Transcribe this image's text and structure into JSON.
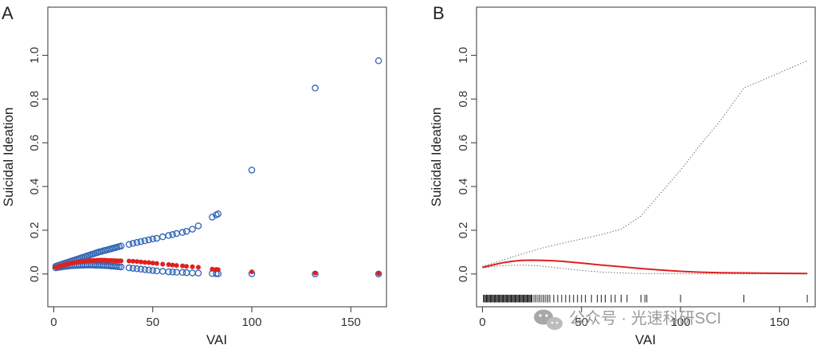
{
  "colors": {
    "observed": "#2e63b5",
    "fitted": "#e02020",
    "ci": "#555555",
    "axis": "#333333",
    "rug": "#000000"
  },
  "watermark": {
    "icon": "wechat-icon",
    "text": "公众号 · 光速科研SCI"
  },
  "chart_data": [
    {
      "panel_label": "A",
      "type": "scatter",
      "xlabel": "VAI",
      "ylabel": "Suicidal Ideation",
      "xlim": [
        -3,
        168
      ],
      "ylim": [
        -0.15,
        1.22
      ],
      "xticks": [
        0,
        50,
        100,
        150
      ],
      "yticks": [
        0.0,
        0.2,
        0.4,
        0.6,
        0.8,
        1.0
      ],
      "ytick_labels": [
        "0.0",
        "0.2",
        "0.4",
        "0.6",
        "0.8",
        "1.0"
      ],
      "grid": false,
      "legend": "none",
      "series": [
        {
          "role": "fitted",
          "marker": "filled-circle",
          "x": [
            1,
            2,
            3,
            4,
            5,
            6,
            7,
            8,
            9,
            10,
            11,
            12,
            13,
            14,
            15,
            16,
            17,
            18,
            19,
            20,
            21,
            22,
            23,
            24,
            25,
            26,
            27,
            28,
            29,
            30,
            31,
            32,
            33,
            34,
            38,
            40,
            42,
            44,
            46,
            48,
            50,
            52,
            55,
            58,
            60,
            62,
            65,
            67,
            70,
            73,
            80,
            82,
            83,
            100,
            132,
            164
          ],
          "y": [
            0.031,
            0.033,
            0.036,
            0.038,
            0.041,
            0.043,
            0.045,
            0.047,
            0.049,
            0.051,
            0.053,
            0.055,
            0.056,
            0.057,
            0.058,
            0.059,
            0.06,
            0.061,
            0.061,
            0.062,
            0.062,
            0.063,
            0.063,
            0.063,
            0.063,
            0.063,
            0.062,
            0.062,
            0.062,
            0.061,
            0.061,
            0.06,
            0.06,
            0.06,
            0.059,
            0.058,
            0.057,
            0.055,
            0.053,
            0.052,
            0.05,
            0.048,
            0.045,
            0.043,
            0.041,
            0.039,
            0.037,
            0.035,
            0.033,
            0.031,
            0.022,
            0.021,
            0.02,
            0.01,
            0.004,
            0.002
          ]
        },
        {
          "role": "upper",
          "marker": "open-circle",
          "x": [
            1,
            2,
            3,
            4,
            5,
            6,
            7,
            8,
            9,
            10,
            11,
            12,
            13,
            14,
            15,
            16,
            17,
            18,
            19,
            20,
            21,
            22,
            23,
            24,
            25,
            26,
            27,
            28,
            29,
            30,
            31,
            32,
            33,
            34,
            38,
            40,
            42,
            44,
            46,
            48,
            50,
            52,
            55,
            58,
            60,
            62,
            65,
            67,
            70,
            73,
            80,
            82,
            83,
            100,
            132,
            164
          ],
          "y": [
            0.035,
            0.038,
            0.041,
            0.044,
            0.047,
            0.05,
            0.053,
            0.056,
            0.059,
            0.062,
            0.065,
            0.068,
            0.071,
            0.074,
            0.077,
            0.08,
            0.083,
            0.086,
            0.089,
            0.092,
            0.095,
            0.098,
            0.101,
            0.103,
            0.106,
            0.108,
            0.11,
            0.113,
            0.115,
            0.118,
            0.12,
            0.123,
            0.125,
            0.128,
            0.135,
            0.14,
            0.144,
            0.148,
            0.152,
            0.156,
            0.16,
            0.163,
            0.17,
            0.176,
            0.18,
            0.185,
            0.19,
            0.195,
            0.205,
            0.22,
            0.26,
            0.27,
            0.275,
            0.475,
            0.85,
            0.975
          ]
        },
        {
          "role": "lower",
          "marker": "open-circle",
          "x": [
            1,
            2,
            3,
            4,
            5,
            6,
            7,
            8,
            9,
            10,
            11,
            12,
            13,
            14,
            15,
            16,
            17,
            18,
            19,
            20,
            21,
            22,
            23,
            24,
            25,
            26,
            27,
            28,
            29,
            30,
            31,
            32,
            33,
            34,
            38,
            40,
            42,
            44,
            46,
            48,
            50,
            52,
            55,
            58,
            60,
            62,
            65,
            67,
            70,
            73,
            80,
            82,
            83,
            100,
            132,
            164
          ],
          "y": [
            0.028,
            0.03,
            0.031,
            0.032,
            0.034,
            0.035,
            0.036,
            0.037,
            0.038,
            0.038,
            0.039,
            0.039,
            0.04,
            0.04,
            0.04,
            0.041,
            0.041,
            0.041,
            0.041,
            0.041,
            0.04,
            0.04,
            0.04,
            0.039,
            0.039,
            0.038,
            0.038,
            0.037,
            0.036,
            0.036,
            0.035,
            0.034,
            0.033,
            0.032,
            0.028,
            0.026,
            0.024,
            0.022,
            0.02,
            0.018,
            0.016,
            0.014,
            0.012,
            0.01,
            0.009,
            0.008,
            0.007,
            0.006,
            0.005,
            0.004,
            0.002,
            0.001,
            0.001,
            0.001,
            0.0,
            0.0
          ]
        }
      ]
    },
    {
      "panel_label": "B",
      "type": "line",
      "xlabel": "VAI",
      "ylabel": "Suicidal Ideation",
      "xlim": [
        -3,
        168
      ],
      "ylim": [
        -0.15,
        1.22
      ],
      "xticks": [
        0,
        50,
        100,
        150
      ],
      "yticks": [
        0.0,
        0.2,
        0.4,
        0.6,
        0.8,
        1.0
      ],
      "ytick_labels": [
        "0.0",
        "0.2",
        "0.4",
        "0.6",
        "0.8",
        "1.0"
      ],
      "grid": false,
      "legend": "none",
      "series": [
        {
          "role": "fitted",
          "style": "solid",
          "x": [
            0,
            5,
            10,
            15,
            20,
            25,
            30,
            35,
            40,
            50,
            60,
            70,
            80,
            90,
            100,
            110,
            120,
            130,
            140,
            150,
            164
          ],
          "y": [
            0.03,
            0.041,
            0.051,
            0.058,
            0.062,
            0.063,
            0.062,
            0.061,
            0.058,
            0.05,
            0.041,
            0.033,
            0.025,
            0.018,
            0.012,
            0.008,
            0.006,
            0.005,
            0.004,
            0.003,
            0.002
          ]
        },
        {
          "role": "upper",
          "style": "dotted",
          "x": [
            0,
            10,
            20,
            30,
            40,
            50,
            60,
            70,
            80,
            90,
            100,
            110,
            120,
            132,
            150,
            164
          ],
          "y": [
            0.035,
            0.062,
            0.092,
            0.118,
            0.14,
            0.16,
            0.18,
            0.205,
            0.265,
            0.37,
            0.475,
            0.59,
            0.7,
            0.85,
            0.92,
            0.975
          ]
        },
        {
          "role": "lower",
          "style": "dotted",
          "x": [
            0,
            10,
            20,
            30,
            40,
            50,
            60,
            70,
            80,
            100,
            120,
            140,
            164
          ],
          "y": [
            0.028,
            0.038,
            0.041,
            0.036,
            0.026,
            0.016,
            0.009,
            0.005,
            0.002,
            0.001,
            0.0,
            0.0,
            0.0
          ]
        }
      ],
      "rug": [
        0.5,
        1,
        1.5,
        2,
        2.5,
        3,
        3.5,
        4,
        4.5,
        5,
        5.5,
        6,
        6.5,
        7,
        7.5,
        8,
        8.5,
        9,
        9.5,
        10,
        10.5,
        11,
        11.5,
        12,
        12.5,
        13,
        13.5,
        14,
        14.5,
        15,
        15.5,
        16,
        16.5,
        17,
        17.5,
        18,
        18.5,
        19,
        19.5,
        20,
        20.5,
        21,
        21.5,
        22,
        22.5,
        23,
        23.5,
        24,
        24.5,
        25,
        26,
        27,
        28,
        29,
        30,
        31,
        32,
        33,
        34,
        36,
        38,
        40,
        42,
        44,
        46,
        48,
        50,
        52,
        55,
        58,
        60,
        62,
        65,
        67,
        70,
        73,
        80,
        82,
        83,
        100,
        132,
        164
      ]
    }
  ]
}
